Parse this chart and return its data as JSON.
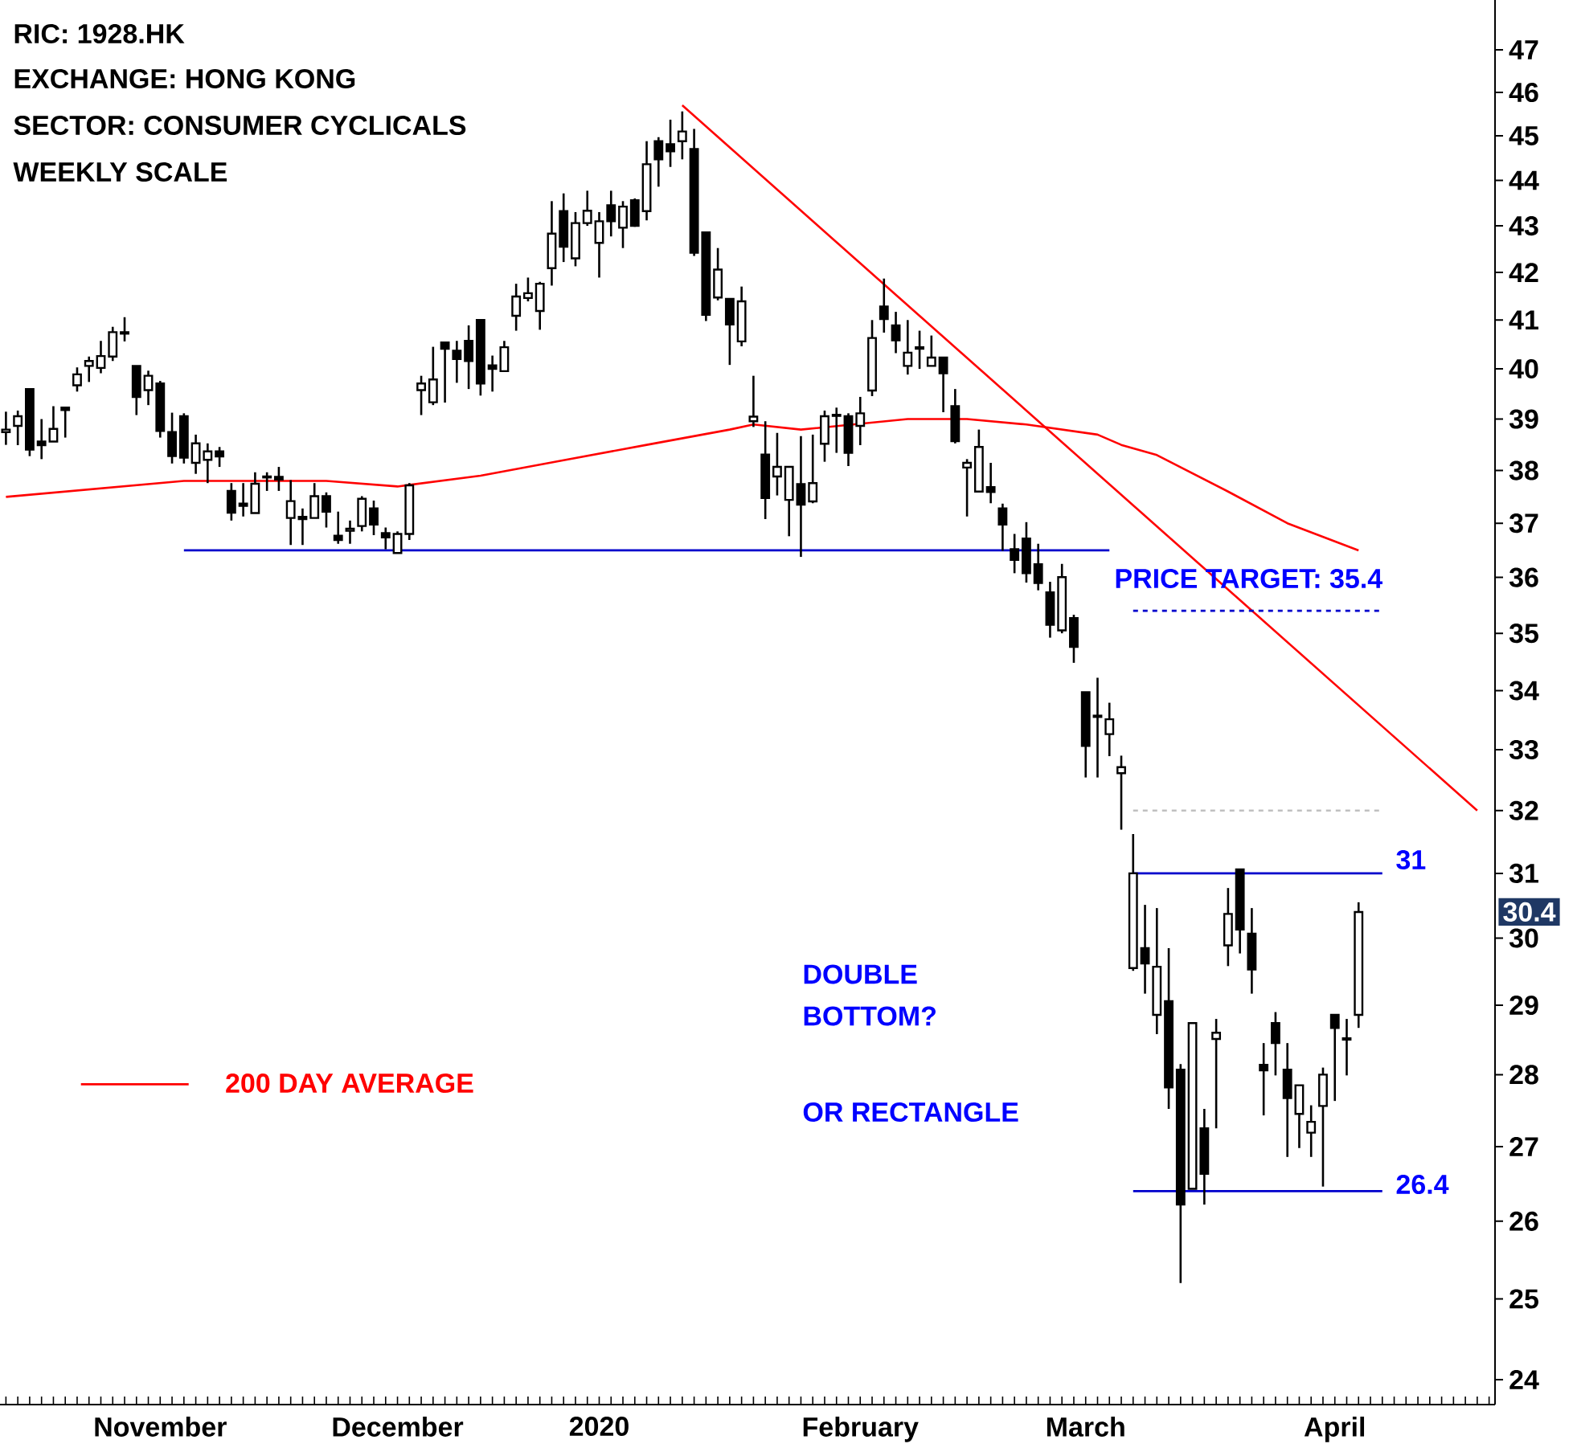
{
  "chart_data": {
    "type": "candlestick",
    "title": "RIC: 1928.HK",
    "annotations": [
      "EXCHANGE: HONG KONG",
      "SECTOR: CONSUMER CYCLICALS",
      "WEEKLY SCALE",
      "DOUBLE BOTTOM?",
      "OR RECTANGLE",
      "PRICE TARGET: 35.4",
      "31",
      "26.4",
      {
        "text": "30.4",
        "y": 30.4
      }
    ],
    "categories": [
      null,
      null,
      null,
      null,
      null,
      null,
      null,
      null,
      null,
      null,
      null,
      null,
      null,
      "November",
      null,
      null,
      null,
      null,
      null,
      null,
      null,
      null,
      null,
      null,
      null,
      null,
      null,
      null,
      null,
      null,
      null,
      null,
      null,
      "December",
      null,
      null,
      null,
      null,
      null,
      null,
      null,
      null,
      null,
      null,
      null,
      null,
      null,
      null,
      null,
      null,
      "2020",
      null,
      null,
      null,
      null,
      null,
      null,
      null,
      null,
      null,
      null,
      null,
      null,
      null,
      null,
      null,
      null,
      null,
      null,
      null,
      null,
      null,
      "February",
      null,
      null,
      null,
      null,
      null,
      null,
      null,
      null,
      null,
      null,
      null,
      null,
      null,
      null,
      null,
      null,
      null,
      null,
      "March",
      null,
      null,
      null,
      null,
      null,
      null,
      null,
      null,
      null,
      null,
      null,
      null,
      null,
      null,
      null,
      null,
      null,
      null,
      null,
      null,
      "April",
      null,
      null,
      null,
      null,
      null,
      null,
      null,
      null,
      null,
      null,
      null,
      null,
      null
    ],
    "ohlc": [
      [
        38.75,
        39.15,
        38.5,
        38.8
      ],
      [
        38.87,
        39.17,
        38.49,
        39.06
      ],
      [
        39.6,
        39.6,
        38.28,
        38.41
      ],
      [
        38.56,
        39.0,
        38.22,
        38.49
      ],
      [
        38.56,
        39.26,
        38.56,
        38.81
      ],
      [
        39.23,
        39.23,
        38.64,
        39.18
      ],
      [
        39.68,
        40.03,
        39.55,
        39.9
      ],
      [
        40.06,
        40.25,
        39.74,
        40.16
      ],
      [
        40.02,
        40.57,
        39.92,
        40.26
      ],
      [
        40.25,
        40.86,
        40.16,
        40.75
      ],
      [
        40.75,
        41.06,
        40.56,
        40.72
      ],
      [
        40.06,
        40.06,
        39.08,
        39.44
      ],
      [
        39.58,
        39.97,
        39.28,
        39.87
      ],
      [
        39.71,
        39.76,
        38.64,
        38.77
      ],
      [
        38.75,
        39.13,
        38.14,
        38.28
      ],
      [
        39.06,
        39.12,
        38.14,
        38.25
      ],
      [
        38.15,
        38.7,
        37.94,
        38.53
      ],
      [
        38.21,
        38.53,
        37.76,
        38.37
      ],
      [
        38.37,
        38.46,
        38.07,
        38.27
      ],
      [
        37.61,
        37.76,
        37.05,
        37.2
      ],
      [
        37.37,
        37.76,
        37.13,
        37.33
      ],
      [
        37.19,
        37.97,
        37.19,
        37.75
      ],
      [
        37.87,
        37.97,
        37.61,
        37.89
      ],
      [
        37.88,
        38.07,
        37.61,
        37.83
      ],
      [
        37.1,
        37.82,
        36.6,
        37.42
      ],
      [
        37.12,
        37.28,
        36.6,
        37.08
      ],
      [
        37.1,
        37.76,
        37.1,
        37.51
      ],
      [
        37.51,
        37.58,
        36.92,
        37.22
      ],
      [
        36.77,
        37.22,
        36.62,
        36.69
      ],
      [
        36.86,
        37.05,
        36.62,
        36.9
      ],
      [
        36.95,
        37.51,
        36.85,
        37.46
      ],
      [
        37.28,
        37.43,
        36.78,
        36.98
      ],
      [
        36.82,
        36.92,
        36.52,
        36.74
      ],
      [
        36.45,
        36.85,
        36.45,
        36.8
      ],
      [
        36.8,
        37.76,
        36.69,
        37.72
      ],
      [
        39.58,
        39.87,
        39.08,
        39.71
      ],
      [
        39.34,
        40.45,
        39.28,
        39.79
      ],
      [
        40.54,
        40.54,
        39.33,
        40.41
      ],
      [
        40.37,
        40.57,
        39.73,
        40.2
      ],
      [
        40.57,
        40.89,
        39.6,
        40.16
      ],
      [
        41.0,
        41.0,
        39.47,
        39.71
      ],
      [
        40.07,
        40.27,
        39.55,
        40.0
      ],
      [
        39.96,
        40.57,
        39.96,
        40.44
      ],
      [
        41.09,
        41.76,
        40.78,
        41.49
      ],
      [
        41.46,
        41.89,
        41.39,
        41.56
      ],
      [
        41.19,
        41.8,
        40.8,
        41.76
      ],
      [
        42.09,
        43.54,
        41.72,
        42.83
      ],
      [
        43.32,
        43.71,
        42.22,
        42.55
      ],
      [
        42.3,
        43.3,
        42.13,
        43.06
      ],
      [
        43.06,
        43.77,
        43.0,
        43.33
      ],
      [
        42.63,
        43.3,
        41.89,
        43.1
      ],
      [
        43.45,
        43.77,
        42.77,
        43.1
      ],
      [
        42.96,
        43.54,
        42.52,
        43.42
      ],
      [
        43.56,
        43.6,
        42.98,
        43.0
      ],
      [
        43.32,
        44.88,
        43.12,
        44.36
      ],
      [
        44.88,
        44.97,
        43.86,
        44.47
      ],
      [
        44.81,
        45.37,
        44.3,
        44.65
      ],
      [
        44.88,
        45.56,
        44.47,
        45.1
      ],
      [
        44.7,
        45.16,
        42.35,
        42.42
      ],
      [
        42.86,
        42.86,
        40.98,
        41.11
      ],
      [
        41.47,
        42.52,
        41.41,
        42.06
      ],
      [
        41.44,
        41.44,
        40.08,
        40.91
      ],
      [
        40.56,
        41.7,
        40.46,
        41.39
      ],
      [
        38.96,
        39.87,
        38.85,
        39.05
      ],
      [
        38.31,
        38.96,
        37.08,
        37.48
      ],
      [
        37.89,
        38.73,
        37.53,
        38.07
      ],
      [
        37.44,
        38.07,
        36.76,
        38.07
      ],
      [
        37.74,
        38.67,
        36.38,
        37.35
      ],
      [
        37.41,
        38.7,
        37.38,
        37.76
      ],
      [
        38.52,
        39.17,
        38.17,
        39.06
      ],
      [
        39.07,
        39.23,
        38.34,
        39.09
      ],
      [
        39.06,
        39.12,
        38.09,
        38.34
      ],
      [
        38.87,
        39.44,
        38.49,
        39.12
      ],
      [
        39.57,
        41.0,
        39.46,
        40.63
      ],
      [
        41.28,
        41.87,
        40.74,
        41.02
      ],
      [
        40.89,
        41.17,
        40.32,
        40.58
      ],
      [
        40.06,
        41.0,
        39.89,
        40.33
      ],
      [
        40.44,
        40.78,
        40.0,
        40.41
      ],
      [
        40.06,
        40.68,
        40.06,
        40.23
      ],
      [
        40.23,
        40.23,
        39.14,
        39.92
      ],
      [
        39.26,
        39.6,
        38.53,
        38.57
      ],
      [
        38.06,
        38.22,
        37.13,
        38.15
      ],
      [
        37.6,
        38.8,
        37.6,
        38.46
      ],
      [
        37.68,
        38.15,
        37.38,
        37.59
      ],
      [
        37.28,
        37.37,
        36.49,
        36.98
      ],
      [
        36.52,
        36.8,
        36.08,
        36.32
      ],
      [
        36.72,
        37.02,
        35.91,
        36.08
      ],
      [
        36.24,
        36.62,
        35.77,
        35.9
      ],
      [
        35.73,
        35.92,
        34.92,
        35.15
      ],
      [
        35.05,
        36.25,
        35.0,
        36.01
      ],
      [
        35.27,
        35.33,
        34.48,
        34.76
      ],
      [
        33.97,
        33.97,
        32.54,
        33.06
      ],
      [
        33.57,
        34.22,
        32.54,
        33.55
      ],
      [
        33.26,
        33.79,
        32.89,
        33.51
      ],
      [
        32.61,
        32.9,
        31.69,
        32.71
      ],
      [
        29.55,
        31.62,
        29.51,
        31.0
      ],
      [
        29.85,
        30.51,
        29.17,
        29.62
      ],
      [
        28.86,
        30.46,
        28.58,
        29.57
      ],
      [
        29.06,
        29.85,
        27.52,
        27.82
      ],
      [
        28.07,
        28.15,
        25.2,
        26.22
      ],
      [
        26.43,
        28.74,
        26.43,
        28.74
      ],
      [
        27.25,
        27.52,
        26.22,
        26.63
      ],
      [
        28.51,
        28.8,
        27.25,
        28.6
      ],
      [
        29.89,
        30.77,
        29.58,
        30.37
      ],
      [
        31.06,
        31.06,
        29.77,
        30.13
      ],
      [
        30.07,
        30.46,
        29.17,
        29.53
      ],
      [
        28.14,
        28.45,
        27.43,
        28.06
      ],
      [
        28.74,
        28.9,
        27.99,
        28.45
      ],
      [
        28.07,
        28.45,
        26.86,
        27.67
      ],
      [
        27.45,
        27.85,
        26.98,
        27.85
      ],
      [
        27.19,
        27.57,
        26.86,
        27.34
      ],
      [
        27.56,
        28.1,
        26.46,
        28.0
      ],
      [
        28.86,
        28.86,
        27.63,
        28.67
      ],
      [
        28.5,
        28.8,
        27.99,
        28.52
      ],
      [
        28.86,
        30.55,
        28.67,
        30.4
      ],
      null,
      null,
      null,
      null,
      null,
      null,
      null,
      null,
      null,
      null,
      null
    ],
    "series": [
      {
        "type": "line",
        "name": "200 DAY AVERAGE",
        "color": "#ff0000",
        "values": [
          37.5,
          null,
          null,
          null,
          null,
          null,
          null,
          null,
          null,
          null,
          null,
          null,
          null,
          null,
          null,
          37.8,
          null,
          null,
          null,
          null,
          null,
          null,
          null,
          null,
          null,
          null,
          null,
          37.8,
          null,
          null,
          null,
          null,
          null,
          37.7,
          null,
          null,
          null,
          null,
          null,
          null,
          37.9,
          null,
          null,
          null,
          null,
          null,
          null,
          38.2,
          null,
          null,
          null,
          null,
          null,
          null,
          38.5,
          null,
          null,
          null,
          null,
          null,
          null,
          38.8,
          null,
          38.9,
          null,
          null,
          null,
          38.8,
          null,
          null,
          null,
          null,
          null,
          null,
          null,
          null,
          39.0,
          null,
          null,
          null,
          null,
          39.0,
          null,
          null,
          null,
          null,
          38.9,
          null,
          null,
          null,
          null,
          null,
          38.7,
          null,
          38.5,
          null,
          null,
          38.3,
          null,
          null,
          null,
          null,
          null,
          37.6,
          null,
          null,
          null,
          null,
          37.0,
          null,
          null,
          null,
          null,
          null,
          36.5,
          null,
          null,
          null,
          null,
          null,
          null,
          null,
          null,
          null,
          null,
          null
        ]
      },
      {
        "type": "line",
        "color": "#ff0000",
        "values": [
          null,
          null,
          null,
          null,
          null,
          null,
          null,
          null,
          null,
          null,
          null,
          null,
          null,
          null,
          null,
          null,
          null,
          null,
          null,
          null,
          null,
          null,
          null,
          null,
          null,
          null,
          null,
          null,
          null,
          null,
          null,
          null,
          null,
          null,
          null,
          null,
          null,
          null,
          null,
          null,
          null,
          null,
          null,
          null,
          null,
          null,
          null,
          null,
          null,
          null,
          null,
          null,
          null,
          null,
          null,
          null,
          null,
          45.7,
          null,
          null,
          null,
          null,
          null,
          null,
          null,
          null,
          null,
          null,
          null,
          null,
          null,
          null,
          null,
          null,
          null,
          null,
          null,
          null,
          null,
          null,
          null,
          null,
          null,
          null,
          null,
          null,
          null,
          null,
          null,
          null,
          null,
          null,
          null,
          null,
          null,
          null,
          null,
          null,
          null,
          null,
          null,
          null,
          null,
          null,
          null,
          null,
          null,
          null,
          null,
          null,
          null,
          null,
          null,
          null,
          null,
          null,
          null,
          null,
          null,
          null,
          null,
          null,
          null,
          null,
          32.0,
          null
        ]
      },
      {
        "type": "line",
        "color": "#0000cc",
        "values": [
          null,
          null,
          null,
          null,
          null,
          null,
          null,
          null,
          null,
          null,
          null,
          null,
          null,
          null,
          null,
          36.5,
          null,
          null,
          null,
          null,
          null,
          null,
          null,
          null,
          null,
          null,
          null,
          null,
          null,
          null,
          null,
          null,
          null,
          null,
          null,
          null,
          null,
          null,
          null,
          null,
          null,
          null,
          null,
          null,
          null,
          null,
          null,
          null,
          null,
          null,
          null,
          null,
          null,
          null,
          null,
          null,
          null,
          null,
          null,
          null,
          null,
          null,
          null,
          null,
          null,
          null,
          null,
          null,
          null,
          null,
          null,
          null,
          null,
          null,
          null,
          null,
          null,
          null,
          null,
          null,
          null,
          null,
          null,
          null,
          null,
          null,
          null,
          null,
          null,
          null,
          null,
          null,
          null,
          36.5,
          null,
          null,
          null,
          null,
          null,
          null,
          null,
          null,
          null,
          null,
          null,
          null,
          null,
          null,
          null,
          null,
          null,
          null,
          null,
          null,
          null,
          null,
          null,
          null,
          null,
          null,
          null,
          null,
          null,
          null,
          null,
          null
        ]
      },
      {
        "type": "line",
        "color": "#0000cc",
        "values": [
          null,
          null,
          null,
          null,
          null,
          null,
          null,
          null,
          null,
          null,
          null,
          null,
          null,
          null,
          null,
          null,
          null,
          null,
          null,
          null,
          null,
          null,
          null,
          null,
          null,
          null,
          null,
          null,
          null,
          null,
          null,
          null,
          null,
          null,
          null,
          null,
          null,
          null,
          null,
          null,
          null,
          null,
          null,
          null,
          null,
          null,
          null,
          null,
          null,
          null,
          null,
          null,
          null,
          null,
          null,
          null,
          null,
          null,
          null,
          null,
          null,
          null,
          null,
          null,
          null,
          null,
          null,
          null,
          null,
          null,
          null,
          null,
          null,
          null,
          null,
          null,
          null,
          null,
          null,
          null,
          null,
          null,
          null,
          null,
          null,
          null,
          null,
          null,
          null,
          null,
          null,
          null,
          null,
          null,
          null,
          31,
          null,
          null,
          null,
          null,
          null,
          null,
          null,
          null,
          null,
          null,
          null,
          null,
          null,
          null,
          null,
          null,
          null,
          null,
          null,
          null,
          31,
          null,
          null,
          null,
          null,
          null,
          null,
          null,
          null,
          null
        ]
      },
      {
        "type": "line",
        "color": "#0000cc",
        "values": [
          null,
          null,
          null,
          null,
          null,
          null,
          null,
          null,
          null,
          null,
          null,
          null,
          null,
          null,
          null,
          null,
          null,
          null,
          null,
          null,
          null,
          null,
          null,
          null,
          null,
          null,
          null,
          null,
          null,
          null,
          null,
          null,
          null,
          null,
          null,
          null,
          null,
          null,
          null,
          null,
          null,
          null,
          null,
          null,
          null,
          null,
          null,
          null,
          null,
          null,
          null,
          null,
          null,
          null,
          null,
          null,
          null,
          null,
          null,
          null,
          null,
          null,
          null,
          null,
          null,
          null,
          null,
          null,
          null,
          null,
          null,
          null,
          null,
          null,
          null,
          null,
          null,
          null,
          null,
          null,
          null,
          null,
          null,
          null,
          null,
          null,
          null,
          null,
          null,
          null,
          null,
          null,
          null,
          null,
          null,
          26.4,
          null,
          null,
          null,
          null,
          null,
          null,
          null,
          null,
          null,
          null,
          null,
          null,
          null,
          null,
          null,
          null,
          null,
          null,
          null,
          null,
          26.4,
          null,
          null,
          null,
          null,
          null,
          null,
          null,
          null,
          null
        ]
      },
      {
        "type": "line",
        "color": "#0000cc",
        "line_style": "dashed",
        "values": [
          null,
          null,
          null,
          null,
          null,
          null,
          null,
          null,
          null,
          null,
          null,
          null,
          null,
          null,
          null,
          null,
          null,
          null,
          null,
          null,
          null,
          null,
          null,
          null,
          null,
          null,
          null,
          null,
          null,
          null,
          null,
          null,
          null,
          null,
          null,
          null,
          null,
          null,
          null,
          null,
          null,
          null,
          null,
          null,
          null,
          null,
          null,
          null,
          null,
          null,
          null,
          null,
          null,
          null,
          null,
          null,
          null,
          null,
          null,
          null,
          null,
          null,
          null,
          null,
          null,
          null,
          null,
          null,
          null,
          null,
          null,
          null,
          null,
          null,
          null,
          null,
          null,
          null,
          null,
          null,
          null,
          null,
          null,
          null,
          null,
          null,
          null,
          null,
          null,
          null,
          null,
          null,
          null,
          null,
          null,
          35.4,
          null,
          null,
          null,
          null,
          null,
          null,
          null,
          null,
          null,
          null,
          null,
          null,
          null,
          null,
          null,
          null,
          null,
          null,
          null,
          null,
          35.4,
          null,
          null,
          null,
          null,
          null,
          null,
          null,
          null,
          null
        ]
      },
      {
        "type": "line",
        "color": "#c0c0c0",
        "line_style": "dashed",
        "values": [
          null,
          null,
          null,
          null,
          null,
          null,
          null,
          null,
          null,
          null,
          null,
          null,
          null,
          null,
          null,
          null,
          null,
          null,
          null,
          null,
          null,
          null,
          null,
          null,
          null,
          null,
          null,
          null,
          null,
          null,
          null,
          null,
          null,
          null,
          null,
          null,
          null,
          null,
          null,
          null,
          null,
          null,
          null,
          null,
          null,
          null,
          null,
          null,
          null,
          null,
          null,
          null,
          null,
          null,
          null,
          null,
          null,
          null,
          null,
          null,
          null,
          null,
          null,
          null,
          null,
          null,
          null,
          null,
          null,
          null,
          null,
          null,
          null,
          null,
          null,
          null,
          null,
          null,
          null,
          null,
          null,
          null,
          null,
          null,
          null,
          null,
          null,
          null,
          null,
          null,
          null,
          null,
          null,
          null,
          null,
          32,
          null,
          null,
          null,
          null,
          null,
          null,
          null,
          null,
          null,
          null,
          null,
          null,
          null,
          null,
          null,
          null,
          null,
          null,
          null,
          null,
          32,
          null,
          null,
          null,
          null,
          null,
          null,
          null,
          null,
          null
        ]
      }
    ],
    "log": true,
    "ylim": [
      23.7,
      48.2
    ],
    "yticks": [
      24,
      25,
      26,
      27,
      28,
      29,
      30,
      31,
      32,
      33,
      34,
      35,
      36,
      37,
      38,
      39,
      40,
      41,
      42,
      43,
      44,
      45,
      46,
      47
    ],
    "legend": "left"
  }
}
